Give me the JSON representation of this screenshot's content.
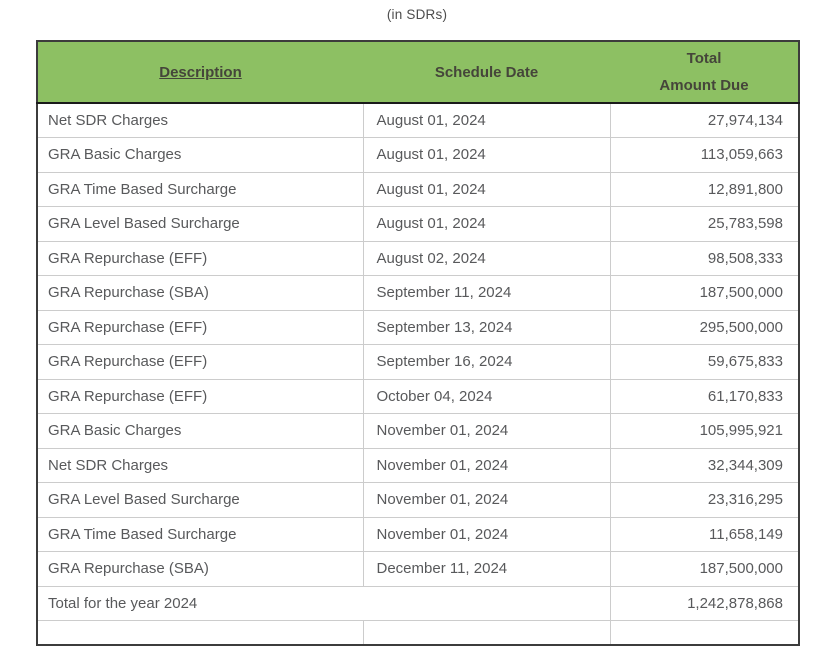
{
  "title": "(in SDRs)",
  "colors": {
    "header_bg": "#8dc063",
    "header_text": "#45453a",
    "row_text": "#58595b",
    "cell_border": "#cccccc",
    "outer_border": "#3c3c3c",
    "title_text": "#4d4d4d"
  },
  "table": {
    "columns": {
      "description": "Description",
      "schedule_date": "Schedule Date",
      "amount_line1": "Total",
      "amount_line2": "Amount Due"
    },
    "rows": [
      {
        "description": "Net SDR Charges",
        "schedule_date": "August 01, 2024",
        "amount": "27,974,134"
      },
      {
        "description": "GRA Basic Charges",
        "schedule_date": "August 01, 2024",
        "amount": "113,059,663"
      },
      {
        "description": "GRA Time Based Surcharge",
        "schedule_date": "August 01, 2024",
        "amount": "12,891,800"
      },
      {
        "description": "GRA Level Based Surcharge",
        "schedule_date": "August 01, 2024",
        "amount": "25,783,598"
      },
      {
        "description": "GRA Repurchase (EFF)",
        "schedule_date": "August 02, 2024",
        "amount": "98,508,333"
      },
      {
        "description": "GRA Repurchase (SBA)",
        "schedule_date": "September 11, 2024",
        "amount": "187,500,000"
      },
      {
        "description": "GRA Repurchase (EFF)",
        "schedule_date": "September 13, 2024",
        "amount": "295,500,000"
      },
      {
        "description": "GRA Repurchase (EFF)",
        "schedule_date": "September 16, 2024",
        "amount": "59,675,833"
      },
      {
        "description": "GRA Repurchase (EFF)",
        "schedule_date": "October 04, 2024",
        "amount": "61,170,833"
      },
      {
        "description": "GRA Basic Charges",
        "schedule_date": "November 01, 2024",
        "amount": "105,995,921"
      },
      {
        "description": "Net SDR Charges",
        "schedule_date": "November 01, 2024",
        "amount": "32,344,309"
      },
      {
        "description": "GRA Level Based Surcharge",
        "schedule_date": "November 01, 2024",
        "amount": "23,316,295"
      },
      {
        "description": "GRA Time Based Surcharge",
        "schedule_date": "November 01, 2024",
        "amount": "11,658,149"
      },
      {
        "description": "GRA Repurchase (SBA)",
        "schedule_date": "December 11, 2024",
        "amount": "187,500,000"
      }
    ],
    "total": {
      "label": "Total for the year 2024",
      "amount": "1,242,878,868"
    }
  }
}
